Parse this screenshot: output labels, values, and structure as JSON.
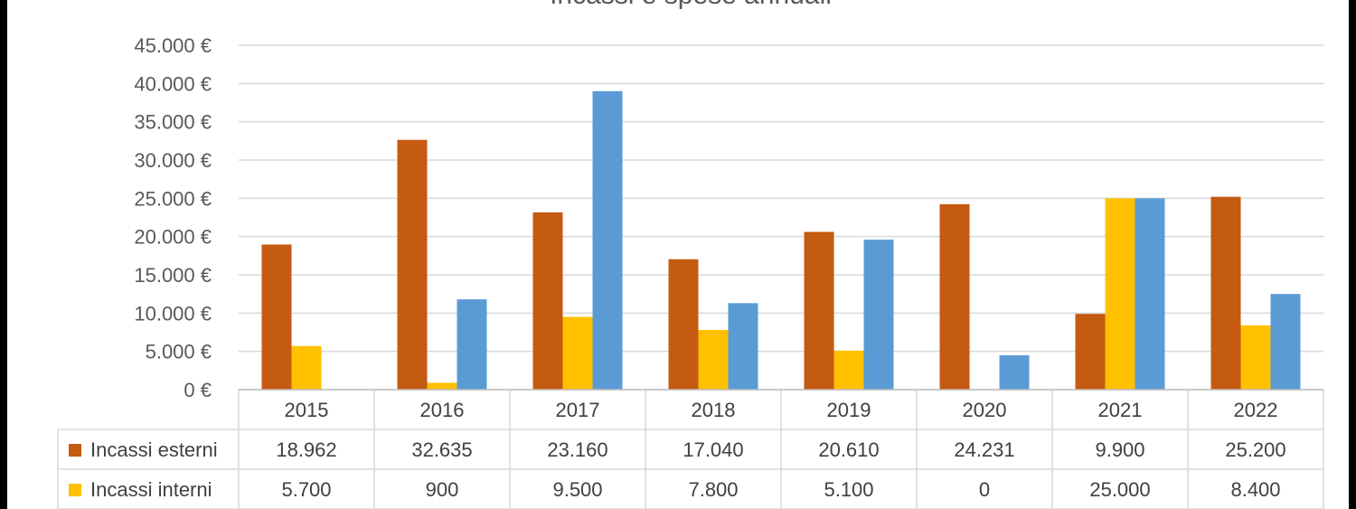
{
  "chart_data": {
    "type": "bar",
    "title": "Incassi e spese annuali",
    "categories": [
      "2015",
      "2016",
      "2017",
      "2018",
      "2019",
      "2020",
      "2021",
      "2022"
    ],
    "series": [
      {
        "name": "Incassi esterni",
        "color": "#C55A11",
        "values": [
          18962,
          32635,
          23160,
          17040,
          20610,
          24231,
          9900,
          25200
        ],
        "labels": [
          "18.962",
          "32.635",
          "23.160",
          "17.040",
          "20.610",
          "24.231",
          "9.900",
          "25.200"
        ]
      },
      {
        "name": "Incassi interni",
        "color": "#FFC000",
        "values": [
          5700,
          900,
          9500,
          7800,
          5100,
          0,
          25000,
          8400
        ],
        "labels": [
          "5.700",
          "900",
          "9.500",
          "7.800",
          "5.100",
          "0",
          "25.000",
          "8.400"
        ]
      },
      {
        "color": "#5B9BD5",
        "values": [
          0,
          11800,
          39000,
          11300,
          19600,
          4500,
          25000,
          12500
        ]
      }
    ],
    "y_ticks": [
      "0 €",
      "5.000 €",
      "10.000 €",
      "15.000 €",
      "20.000 €",
      "25.000 €",
      "30.000 €",
      "35.000 €",
      "40.000 €",
      "45.000 €"
    ],
    "ylim": [
      0,
      45000
    ],
    "grid": true,
    "legend": "data-table"
  }
}
